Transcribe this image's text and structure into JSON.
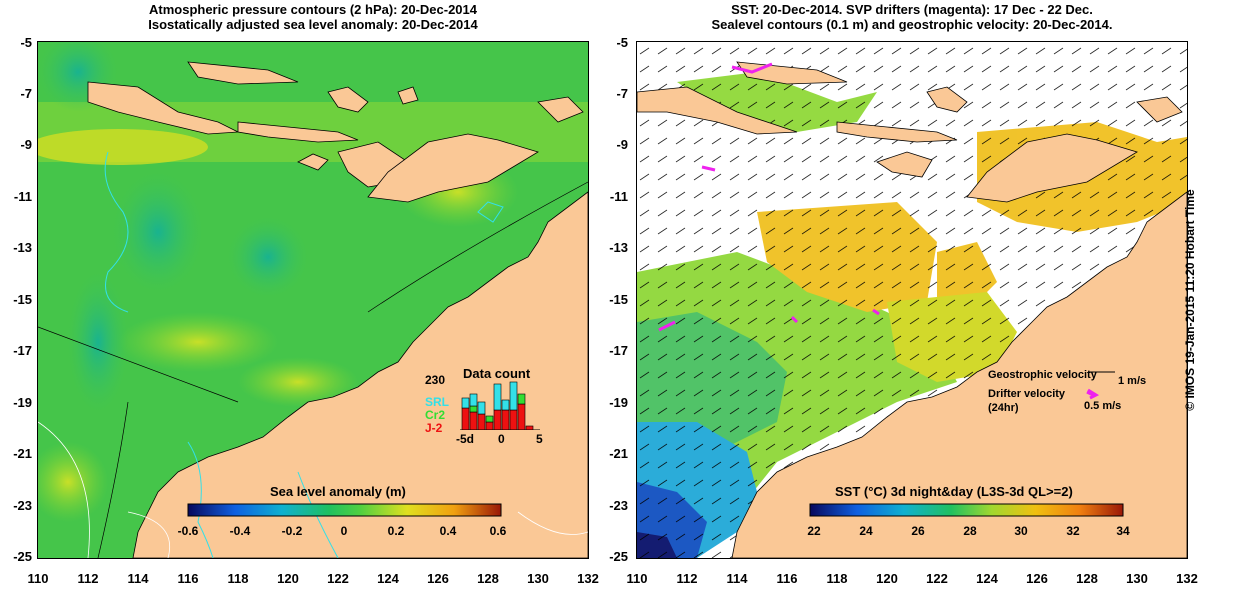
{
  "left_panel": {
    "title_line1": "Atmospheric pressure contours (2 hPa): 20-Dec-2014",
    "title_line2": "Isostatically adjusted sea level anomaly: 20-Dec-2014",
    "colorbar": {
      "label": "Sea level anomaly (m)",
      "ticks": [
        "-0.6",
        "-0.4",
        "-0.2",
        "0",
        "0.2",
        "0.4",
        "0.6"
      ]
    },
    "data_count": {
      "title": "Data count",
      "max_label": "230",
      "legend": [
        {
          "name": "SRL",
          "color": "#33e0e8"
        },
        {
          "name": "Cr2",
          "color": "#33dd33"
        },
        {
          "name": "J-2",
          "color": "#ee1111"
        }
      ],
      "x_labels": [
        "-5d",
        "0",
        "5"
      ]
    }
  },
  "right_panel": {
    "title_line1": "SST: 20-Dec-2014. SVP drifters (magenta): 17 Dec - 22 Dec.",
    "title_line2": "Sealevel contours (0.1 m) and geostrophic velocity: 20-Dec-2014.",
    "colorbar": {
      "label": "SST (°C) 3d night&day (L3S-3d QL>=2)",
      "ticks": [
        "22",
        "24",
        "26",
        "28",
        "30",
        "32",
        "34"
      ]
    },
    "legend": {
      "geo_label": "Geostrophic velocity",
      "geo_value": "1 m/s",
      "drifter_label": "Drifter velocity",
      "drifter_sub": "(24hr)",
      "drifter_value": "0.5 m/s"
    }
  },
  "axes": {
    "y_ticks": [
      "-5",
      "-7",
      "-9",
      "-11",
      "-13",
      "-15",
      "-17",
      "-19",
      "-21",
      "-23",
      "-25"
    ],
    "x_ticks": [
      "110",
      "112",
      "114",
      "116",
      "118",
      "120",
      "122",
      "124",
      "126",
      "128",
      "130",
      "132"
    ]
  },
  "credit": "© IMOS 19-Jan-2015 11:20 Hobart Time",
  "colors": {
    "land": "#fac896",
    "sla_ocean": "#44cc44",
    "sst_missing": "#ffffff",
    "drifter": "#ee22ee"
  }
}
